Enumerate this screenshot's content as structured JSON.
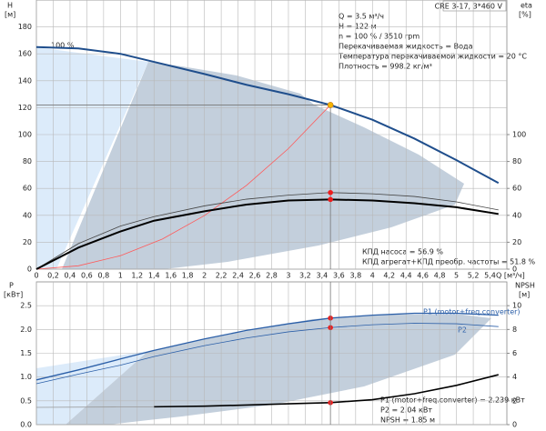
{
  "chart_data": [
    {
      "type": "line",
      "title": "CRE 3-17, 3*460 V",
      "info": [
        "Q = 3.5 м³/ч",
        "H = 122 м",
        "n = 100 % / 3510 rpm",
        "Перекачиваемая жидкость = Вода",
        "Температура перекачиваемой жидкости = 20 °C",
        "Плотность = 998.2 кг/м³"
      ],
      "annotations": [
        "100 %",
        "КПД насоса = 56.9 %",
        "КПД агрегат+КПД преобр. частоты = 51.8 %"
      ],
      "xlabel": "Q [м³/ч]",
      "ylabel": "H",
      "yunit": "[м]",
      "y2label": "eta",
      "y2unit": "[%]",
      "xlim": [
        0,
        5.6
      ],
      "xticks": [
        0,
        {
          "value": 0.2,
          "label": "0,2"
        },
        {
          "value": 0.4,
          "label": "0,4"
        },
        {
          "value": 0.6,
          "label": "0,6"
        },
        {
          "value": 0.8,
          "label": "0,8"
        },
        1,
        {
          "value": 1.2,
          "label": "1,2"
        },
        {
          "value": 1.4,
          "label": "1,4"
        },
        {
          "value": 1.6,
          "label": "1,6"
        },
        {
          "value": 1.8,
          "label": "1,8"
        },
        2,
        {
          "value": 2.2,
          "label": "2,2"
        },
        {
          "value": 2.4,
          "label": "2,4"
        },
        {
          "value": 2.6,
          "label": "2,6"
        },
        {
          "value": 2.8,
          "label": "2,8"
        },
        3,
        {
          "value": 3.2,
          "label": "3,2"
        },
        {
          "value": 3.4,
          "label": "3,4"
        },
        {
          "value": 3.6,
          "label": "3,6"
        },
        {
          "value": 3.8,
          "label": "3,8"
        },
        4,
        {
          "value": 4.2,
          "label": "4,2"
        },
        {
          "value": 4.4,
          "label": "4,4"
        },
        {
          "value": 4.6,
          "label": "4,6"
        },
        {
          "value": 4.8,
          "label": "4,8"
        },
        5,
        {
          "value": 5.2,
          "label": "5,2"
        },
        {
          "value": 5.4,
          "label": "5,4"
        }
      ],
      "ylim": [
        0,
        200
      ],
      "yticks": [
        0,
        20,
        40,
        60,
        80,
        100,
        120,
        140,
        160,
        180
      ],
      "y2lim": [
        0,
        200
      ],
      "y2ticks": [
        0,
        20,
        40,
        60,
        80,
        100
      ],
      "grid": true,
      "duty_point": [
        3.5,
        122
      ],
      "series": [
        {
          "color": "#1f4e8c",
          "width": 2,
          "x": [
            0,
            0.5,
            1,
            1.4,
            2,
            2.5,
            3,
            3.5,
            4,
            4.5,
            5,
            5.5
          ],
          "values": [
            165,
            164,
            160,
            154,
            145,
            137,
            130,
            122,
            111,
            97,
            81,
            64
          ]
        },
        {
          "color": "#ff5a5a",
          "width": 0.8,
          "x": [
            0,
            0.5,
            1,
            1.5,
            2,
            2.5,
            3,
            3.5
          ],
          "values": [
            0,
            2.5,
            10,
            22.4,
            39.8,
            62.2,
            89.6,
            122
          ]
        },
        {
          "color": "#444444",
          "width": 0.8,
          "axis": "y2",
          "x": [
            0,
            0.5,
            1,
            1.4,
            2,
            2.5,
            3,
            3.5,
            4,
            4.5,
            5,
            5.5
          ],
          "values": [
            0,
            19,
            32,
            39,
            47,
            52,
            55,
            56.9,
            56,
            54,
            50,
            44
          ]
        },
        {
          "color": "#000000",
          "width": 2,
          "axis": "y2",
          "x": [
            0,
            0.5,
            1,
            1.4,
            2,
            2.5,
            3,
            3.5,
            4,
            4.5,
            5,
            5.5
          ],
          "values": [
            0,
            16,
            28,
            36,
            43,
            48,
            51,
            51.8,
            51,
            49,
            46,
            41
          ]
        }
      ],
      "highlight": [
        [
          2,
          7
        ],
        [
          3,
          7
        ]
      ]
    },
    {
      "type": "line",
      "annotations": [
        "P1 (motor+freq.converter) = 2.239 кВт",
        "P2 = 2.04 кВт",
        "NPSH = 1.85 м"
      ],
      "ylabel": "P",
      "yunit": "[кВт]",
      "y2label": "NPSH",
      "y2unit": "[м]",
      "xlim": [
        0,
        5.6
      ],
      "xticks": [
        0,
        0.2,
        0.4,
        0.6,
        0.8,
        1,
        1.2,
        1.4,
        1.6,
        1.8,
        2,
        2.2,
        2.4,
        2.6,
        2.8,
        3,
        3.2,
        3.4,
        3.6,
        3.8,
        4,
        4.2,
        4.4,
        4.6,
        4.8,
        5,
        5.2,
        5.4
      ],
      "ylim": [
        0,
        3
      ],
      "yticks": [
        {
          "value": 0,
          "label": "0.0"
        },
        0.5,
        {
          "value": 1,
          "label": "1.0"
        },
        1.5,
        {
          "value": 2,
          "label": "2.0"
        },
        2.5
      ],
      "y2lim": [
        0,
        12
      ],
      "y2ticks": [
        0,
        2,
        4,
        6,
        8,
        10
      ],
      "grid": true,
      "series": [
        {
          "name": "P1 (motor+freq.converter)",
          "color": "#2b5fa8",
          "width": 1.3,
          "x": [
            0,
            0.5,
            1,
            1.4,
            2,
            2.5,
            3,
            3.5,
            4,
            4.5,
            5,
            5.5
          ],
          "values": [
            0.94,
            1.15,
            1.38,
            1.56,
            1.8,
            1.98,
            2.12,
            2.239,
            2.3,
            2.34,
            2.34,
            2.3
          ]
        },
        {
          "name": "P2",
          "color": "#2b5fa8",
          "width": 0.8,
          "x": [
            0,
            0.5,
            1,
            1.4,
            2,
            2.5,
            3,
            3.5,
            4,
            4.5,
            5,
            5.5
          ],
          "values": [
            0.86,
            1.06,
            1.25,
            1.43,
            1.66,
            1.82,
            1.95,
            2.04,
            2.1,
            2.13,
            2.12,
            2.06
          ]
        },
        {
          "color": "#000000",
          "width": 1.6,
          "axis": "y2",
          "x": [
            1.4,
            2,
            2.5,
            3,
            3.5,
            4,
            4.5,
            5,
            5.5
          ],
          "values": [
            1.5,
            1.55,
            1.65,
            1.75,
            1.85,
            2.1,
            2.6,
            3.3,
            4.2
          ]
        },
        {
          "color": "#999999",
          "width": 0.8,
          "axis": "y2",
          "x": [
            0,
            1.4
          ],
          "values": [
            1.45,
            1.5
          ]
        }
      ],
      "highlight": [
        [
          0,
          7
        ],
        [
          1,
          7
        ],
        [
          2,
          4
        ]
      ]
    }
  ]
}
